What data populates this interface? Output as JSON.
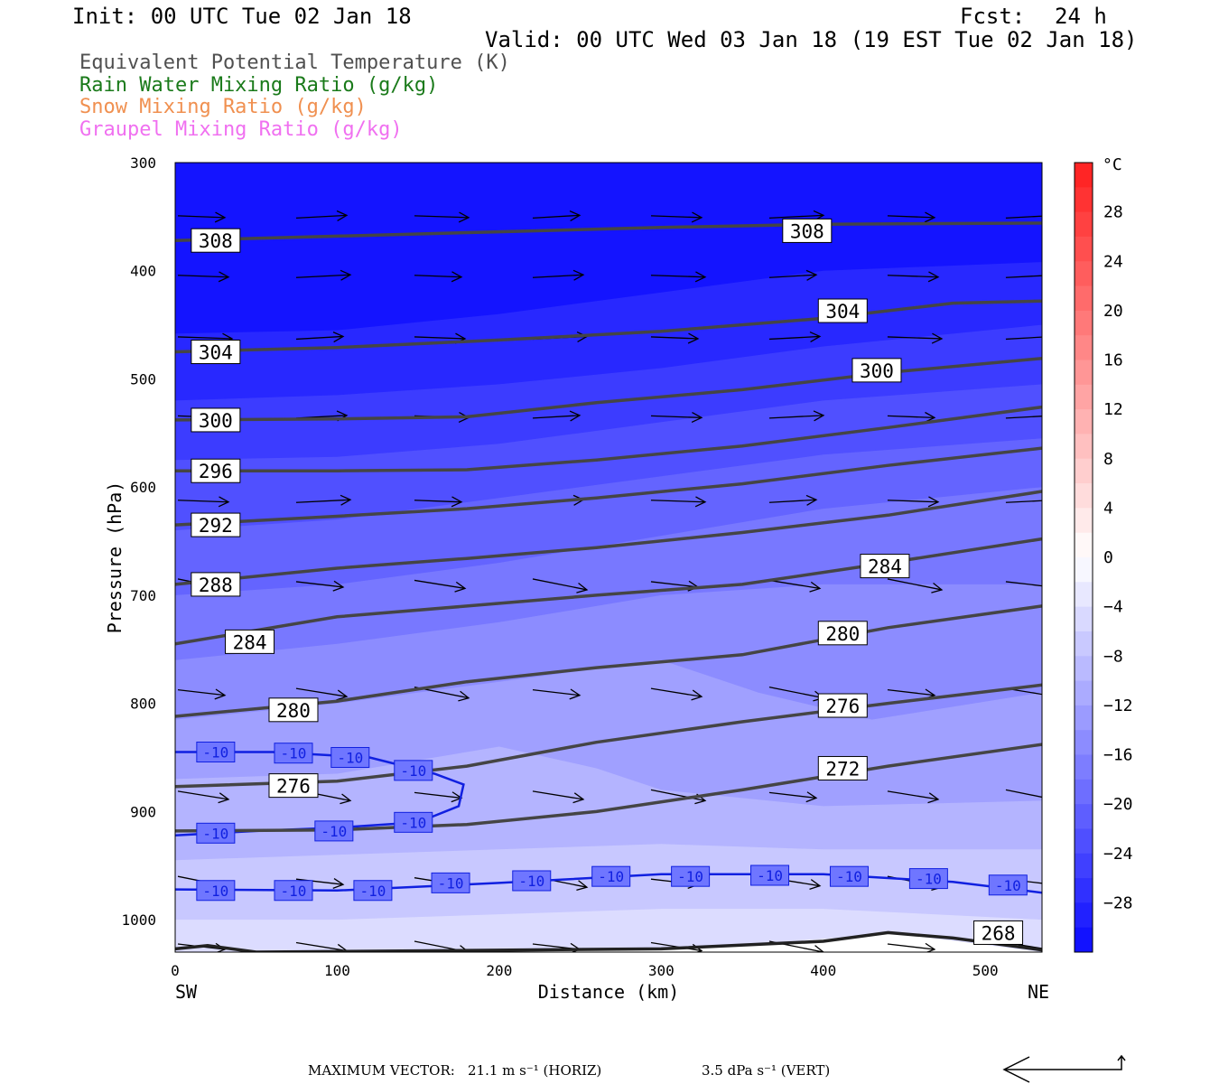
{
  "header": {
    "init": "Init: 00 UTC Tue 02 Jan 18",
    "fcst_label": "Fcst:",
    "fcst_value": "24 h",
    "valid": "Valid: 00 UTC Wed 03 Jan 18 (19 EST Tue 02 Jan 18)"
  },
  "legend": [
    {
      "label": "Equivalent Potential Temperature (K)",
      "color": "#505050"
    },
    {
      "label": "Rain Water Mixing Ratio (g/kg)",
      "color": "#1a7a1a"
    },
    {
      "label": "Snow Mixing Ratio (g/kg)",
      "color": "#f09050"
    },
    {
      "label": "Graupel Mixing Ratio (g/kg)",
      "color": "#f070f0"
    }
  ],
  "footer": {
    "max_vector_label": "MAXIMUM VECTOR:",
    "horiz": "21.1 m s⁻¹ (HORIZ)",
    "vert": "3.5 dPa s⁻¹ (VERT)"
  },
  "chart_data": {
    "type": "cross-section",
    "xlabel": "Distance (km)",
    "ylabel": "Pressure (hPa)",
    "x_ticks": [
      0,
      100,
      200,
      300,
      400,
      500
    ],
    "y_ticks": [
      300,
      400,
      500,
      600,
      700,
      800,
      900,
      1000
    ],
    "xlim": [
      0,
      535
    ],
    "ylim": [
      300,
      1030
    ],
    "x_end_labels": {
      "left": "SW",
      "right": "NE"
    },
    "colorbar": {
      "unit": "°C",
      "ticks": [
        28,
        24,
        20,
        16,
        12,
        8,
        4,
        0,
        -4,
        -8,
        -12,
        -16,
        -20,
        -24,
        -28
      ]
    },
    "theta_e_contours": [
      {
        "level": 308,
        "points": [
          [
            0,
            372
          ],
          [
            100,
            368
          ],
          [
            200,
            364
          ],
          [
            300,
            360
          ],
          [
            400,
            357
          ],
          [
            535,
            356
          ]
        ],
        "labels": [
          {
            "x": 25,
            "p": 372
          },
          {
            "x": 390,
            "p": 363
          }
        ]
      },
      {
        "level": 304,
        "points": [
          [
            0,
            475
          ],
          [
            100,
            471
          ],
          [
            200,
            464
          ],
          [
            300,
            456
          ],
          [
            400,
            444
          ],
          [
            480,
            430
          ],
          [
            535,
            428
          ]
        ],
        "labels": [
          {
            "x": 25,
            "p": 475
          },
          {
            "x": 412,
            "p": 437
          }
        ]
      },
      {
        "level": 300,
        "points": [
          [
            0,
            538
          ],
          [
            100,
            537
          ],
          [
            180,
            535
          ],
          [
            260,
            522
          ],
          [
            350,
            510
          ],
          [
            440,
            494
          ],
          [
            535,
            481
          ]
        ],
        "labels": [
          {
            "x": 25,
            "p": 538
          },
          {
            "x": 433,
            "p": 492
          }
        ]
      },
      {
        "level": 296,
        "points": [
          [
            0,
            585
          ],
          [
            100,
            585
          ],
          [
            180,
            584
          ],
          [
            260,
            575
          ],
          [
            350,
            562
          ],
          [
            440,
            545
          ],
          [
            535,
            526
          ]
        ],
        "labels": [
          {
            "x": 25,
            "p": 585
          }
        ]
      },
      {
        "level": 292,
        "points": [
          [
            0,
            635
          ],
          [
            100,
            627
          ],
          [
            180,
            620
          ],
          [
            260,
            610
          ],
          [
            350,
            597
          ],
          [
            440,
            580
          ],
          [
            535,
            564
          ]
        ],
        "labels": [
          {
            "x": 25,
            "p": 635
          }
        ]
      },
      {
        "level": 288,
        "points": [
          [
            0,
            690
          ],
          [
            100,
            675
          ],
          [
            180,
            666
          ],
          [
            260,
            656
          ],
          [
            350,
            642
          ],
          [
            440,
            626
          ],
          [
            535,
            604
          ]
        ],
        "labels": [
          {
            "x": 25,
            "p": 690
          }
        ]
      },
      {
        "level": 284,
        "points": [
          [
            0,
            745
          ],
          [
            100,
            720
          ],
          [
            180,
            710
          ],
          [
            260,
            700
          ],
          [
            350,
            690
          ],
          [
            440,
            670
          ],
          [
            535,
            648
          ]
        ],
        "labels": [
          {
            "x": 46,
            "p": 743
          },
          {
            "x": 438,
            "p": 673
          }
        ]
      },
      {
        "level": 280,
        "points": [
          [
            0,
            812
          ],
          [
            100,
            798
          ],
          [
            180,
            780
          ],
          [
            260,
            767
          ],
          [
            350,
            755
          ],
          [
            440,
            730
          ],
          [
            535,
            710
          ]
        ],
        "labels": [
          {
            "x": 73,
            "p": 806
          },
          {
            "x": 412,
            "p": 735
          }
        ]
      },
      {
        "level": 276,
        "points": [
          [
            0,
            877
          ],
          [
            100,
            872
          ],
          [
            180,
            858
          ],
          [
            260,
            836
          ],
          [
            350,
            817
          ],
          [
            440,
            800
          ],
          [
            535,
            783
          ]
        ],
        "labels": [
          {
            "x": 73,
            "p": 876
          },
          {
            "x": 412,
            "p": 802
          }
        ]
      },
      {
        "level": 272,
        "points": [
          [
            0,
            918
          ],
          [
            100,
            917
          ],
          [
            180,
            912
          ],
          [
            260,
            900
          ],
          [
            350,
            880
          ],
          [
            440,
            858
          ],
          [
            535,
            838
          ]
        ],
        "labels": [
          {
            "x": 412,
            "p": 860
          }
        ]
      },
      {
        "level": 268,
        "points": [
          [
            0,
            1027
          ],
          [
            20,
            1024
          ],
          [
            50,
            1030
          ],
          [
            300,
            1027
          ],
          [
            400,
            1020
          ],
          [
            440,
            1012
          ],
          [
            480,
            1017
          ],
          [
            535,
            1028
          ]
        ],
        "labels": [
          {
            "x": 508,
            "p": 1012
          }
        ]
      }
    ],
    "temperature_contours": [
      {
        "level": -10,
        "points": [
          [
            0,
            845
          ],
          [
            60,
            845
          ],
          [
            120,
            850
          ],
          [
            160,
            865
          ],
          [
            178,
            875
          ],
          [
            175,
            895
          ],
          [
            150,
            910
          ],
          [
            100,
            915
          ],
          [
            50,
            918
          ],
          [
            0,
            922
          ]
        ],
        "labels": [
          {
            "x": 25,
            "p": 845
          },
          {
            "x": 73,
            "p": 846
          },
          {
            "x": 108,
            "p": 850
          },
          {
            "x": 147,
            "p": 862
          },
          {
            "x": 25,
            "p": 920
          },
          {
            "x": 98,
            "p": 918
          },
          {
            "x": 147,
            "p": 910
          }
        ]
      },
      {
        "level": -10,
        "points": [
          [
            0,
            972
          ],
          [
            100,
            973
          ],
          [
            200,
            966
          ],
          [
            300,
            958
          ],
          [
            400,
            958
          ],
          [
            480,
            965
          ],
          [
            535,
            975
          ]
        ],
        "labels": [
          {
            "x": 25,
            "p": 973
          },
          {
            "x": 73,
            "p": 973
          },
          {
            "x": 122,
            "p": 973
          },
          {
            "x": 170,
            "p": 966
          },
          {
            "x": 220,
            "p": 964
          },
          {
            "x": 269,
            "p": 960
          },
          {
            "x": 318,
            "p": 960
          },
          {
            "x": 367,
            "p": 959
          },
          {
            "x": 416,
            "p": 960
          },
          {
            "x": 465,
            "p": 962
          },
          {
            "x": 514,
            "p": 968
          }
        ]
      }
    ],
    "annotations": {
      "tick_labels_color": "#000000"
    }
  }
}
